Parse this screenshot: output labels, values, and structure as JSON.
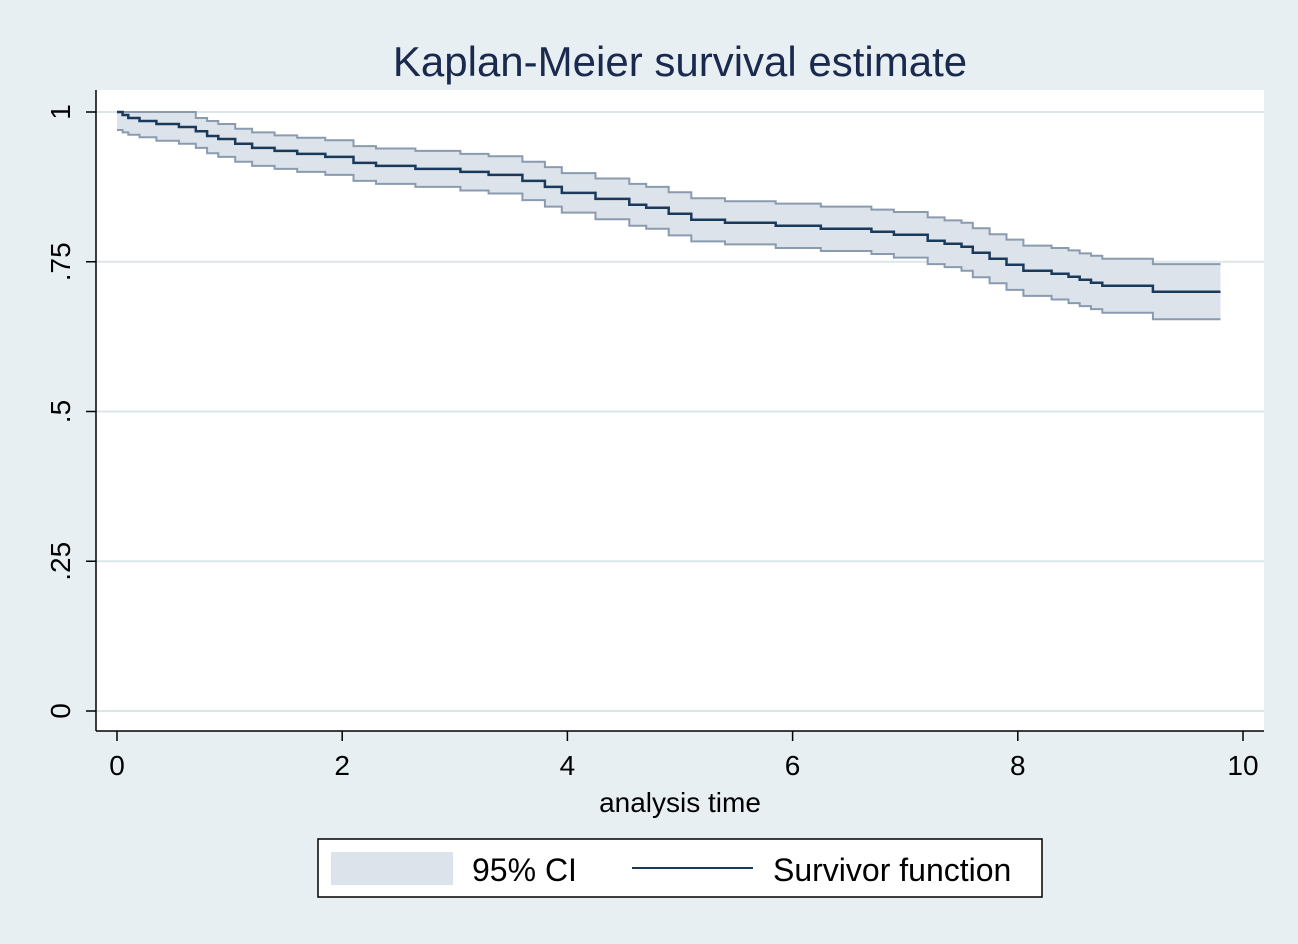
{
  "chart_data": {
    "type": "line",
    "title": "Kaplan-Meier survival estimate",
    "xlabel": "analysis time",
    "ylabel": "",
    "xlim": [
      0,
      10
    ],
    "ylim": [
      0,
      1
    ],
    "x_ticks": [
      0,
      2,
      4,
      6,
      8,
      10
    ],
    "x_tick_labels": [
      "0",
      "2",
      "4",
      "6",
      "8",
      "10"
    ],
    "y_ticks": [
      0,
      0.25,
      0.5,
      0.75,
      1
    ],
    "y_tick_labels": [
      "0",
      ".25",
      ".5",
      ".75",
      "1"
    ],
    "grid": "horizontal",
    "legend": {
      "position": "bottom",
      "entries": [
        "95% CI",
        "Survivor function"
      ]
    },
    "colors": {
      "survivor": "#1a3a5c",
      "ci_fill": "#dde3ea",
      "ci_edge": "#8a9bb0",
      "grid": "#dbe6ea",
      "background": "#e8eff2",
      "title": "#1a2a4f"
    },
    "series": [
      {
        "name": "Survivor function",
        "x": [
          0,
          0.05,
          0.1,
          0.2,
          0.35,
          0.55,
          0.7,
          0.8,
          0.9,
          1.05,
          1.2,
          1.4,
          1.6,
          1.85,
          2.1,
          2.3,
          2.65,
          3.05,
          3.3,
          3.6,
          3.8,
          3.95,
          4.25,
          4.55,
          4.7,
          4.9,
          5.1,
          5.4,
          5.85,
          6.25,
          6.7,
          6.9,
          7.2,
          7.35,
          7.5,
          7.6,
          7.75,
          7.9,
          8.05,
          8.3,
          8.45,
          8.55,
          8.65,
          8.75,
          9.2,
          9.8
        ],
        "y": [
          1.0,
          0.995,
          0.99,
          0.985,
          0.98,
          0.975,
          0.968,
          0.96,
          0.955,
          0.947,
          0.94,
          0.935,
          0.93,
          0.925,
          0.915,
          0.91,
          0.905,
          0.9,
          0.895,
          0.885,
          0.875,
          0.865,
          0.855,
          0.845,
          0.84,
          0.83,
          0.82,
          0.815,
          0.81,
          0.805,
          0.8,
          0.795,
          0.785,
          0.78,
          0.775,
          0.765,
          0.755,
          0.745,
          0.735,
          0.73,
          0.725,
          0.72,
          0.715,
          0.71,
          0.7,
          0.7
        ]
      },
      {
        "name": "95% CI",
        "x": [
          0,
          0.05,
          0.1,
          0.2,
          0.35,
          0.55,
          0.7,
          0.8,
          0.9,
          1.05,
          1.2,
          1.4,
          1.6,
          1.85,
          2.1,
          2.3,
          2.65,
          3.05,
          3.3,
          3.6,
          3.8,
          3.95,
          4.25,
          4.55,
          4.7,
          4.9,
          5.1,
          5.4,
          5.85,
          6.25,
          6.7,
          6.9,
          7.2,
          7.35,
          7.5,
          7.6,
          7.75,
          7.9,
          8.05,
          8.3,
          8.45,
          8.55,
          8.65,
          8.75,
          9.2,
          9.8
        ],
        "lower": [
          0.97,
          0.966,
          0.962,
          0.958,
          0.952,
          0.947,
          0.94,
          0.931,
          0.925,
          0.917,
          0.91,
          0.905,
          0.9,
          0.895,
          0.885,
          0.88,
          0.875,
          0.869,
          0.864,
          0.853,
          0.842,
          0.832,
          0.821,
          0.81,
          0.805,
          0.794,
          0.784,
          0.779,
          0.773,
          0.768,
          0.763,
          0.757,
          0.746,
          0.741,
          0.735,
          0.724,
          0.714,
          0.703,
          0.693,
          0.687,
          0.681,
          0.676,
          0.671,
          0.665,
          0.654,
          0.654
        ],
        "upper": [
          1.0,
          1.0,
          1.0,
          1.0,
          1.0,
          1.0,
          0.99,
          0.985,
          0.98,
          0.972,
          0.966,
          0.961,
          0.957,
          0.953,
          0.943,
          0.939,
          0.935,
          0.93,
          0.926,
          0.917,
          0.908,
          0.898,
          0.889,
          0.88,
          0.875,
          0.866,
          0.856,
          0.851,
          0.847,
          0.842,
          0.837,
          0.833,
          0.824,
          0.819,
          0.815,
          0.806,
          0.796,
          0.787,
          0.777,
          0.773,
          0.769,
          0.764,
          0.76,
          0.755,
          0.746,
          0.746
        ]
      }
    ]
  }
}
